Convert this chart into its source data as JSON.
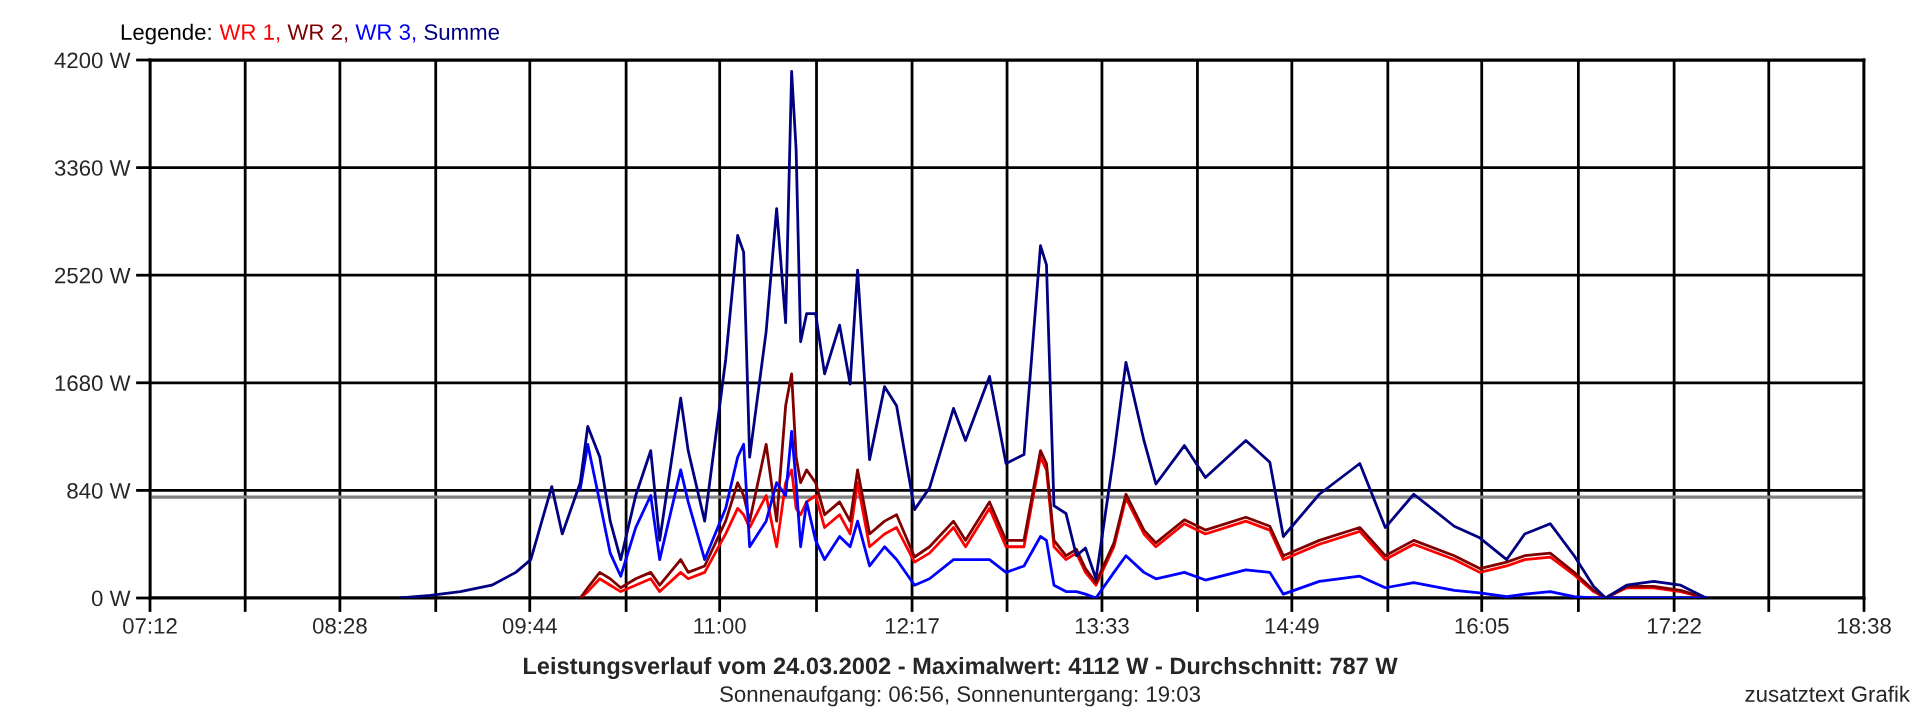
{
  "chart_data": {
    "type": "line",
    "title": "Leistungsverlauf vom 24.03.2002 - Maximalwert: 4112 W - Durchschnitt: 787 W",
    "subtitle": "Sonnenaufgang: 06:56, Sonnenuntergang: 19:03",
    "legend_title": "Legende:",
    "annotations": [
      "zusatztext Grafik"
    ],
    "x": [
      8.87,
      9.07,
      9.27,
      9.48,
      9.64,
      9.74,
      9.88,
      9.95,
      10.07,
      10.12,
      10.2,
      10.27,
      10.34,
      10.44,
      10.54,
      10.6,
      10.74,
      10.79,
      10.9,
      11.04,
      11.12,
      11.16,
      11.2,
      11.31,
      11.38,
      11.44,
      11.48,
      11.51,
      11.54,
      11.58,
      11.64,
      11.7,
      11.8,
      11.87,
      11.92,
      12.0,
      12.1,
      12.18,
      12.3,
      12.4,
      12.56,
      12.64,
      12.8,
      12.91,
      13.03,
      13.14,
      13.18,
      13.23,
      13.31,
      13.38,
      13.44,
      13.51,
      13.63,
      13.71,
      13.83,
      13.91,
      14.1,
      14.24,
      14.51,
      14.67,
      14.76,
      15.0,
      15.27,
      15.44,
      15.63,
      15.9,
      16.07,
      16.25,
      16.37,
      16.54,
      16.7,
      16.83,
      16.91,
      17.05,
      17.23,
      17.41,
      17.58
    ],
    "series": [
      {
        "name": "WR 1,",
        "color": "#ff0000",
        "values": [
          null,
          null,
          null,
          null,
          null,
          null,
          null,
          null,
          0,
          50,
          150,
          100,
          50,
          100,
          150,
          50,
          200,
          150,
          200,
          500,
          700,
          650,
          550,
          800,
          400,
          900,
          1000,
          700,
          650,
          750,
          800,
          550,
          650,
          500,
          900,
          400,
          500,
          550,
          280,
          350,
          550,
          400,
          700,
          400,
          400,
          1100,
          1000,
          400,
          300,
          350,
          200,
          100,
          400,
          780,
          500,
          400,
          580,
          500,
          600,
          530,
          300,
          420,
          520,
          300,
          420,
          300,
          200,
          250,
          300,
          320,
          180,
          50,
          0,
          80,
          80,
          50,
          0
        ]
      },
      {
        "name": "WR 2,",
        "color": "#800000",
        "values": [
          null,
          null,
          null,
          null,
          null,
          null,
          null,
          null,
          0,
          80,
          200,
          150,
          80,
          150,
          200,
          100,
          300,
          200,
          250,
          600,
          900,
          800,
          600,
          1200,
          600,
          1500,
          1750,
          1100,
          900,
          1000,
          900,
          650,
          750,
          600,
          1000,
          500,
          600,
          650,
          320,
          400,
          600,
          450,
          750,
          450,
          450,
          1150,
          1050,
          450,
          330,
          380,
          230,
          120,
          430,
          810,
          530,
          430,
          610,
          530,
          630,
          560,
          330,
          450,
          550,
          330,
          450,
          330,
          230,
          280,
          330,
          350,
          200,
          60,
          0,
          90,
          90,
          60,
          0
        ]
      },
      {
        "name": "WR 3,",
        "color": "#0000ff",
        "values": [
          null,
          null,
          null,
          null,
          null,
          null,
          null,
          null,
          850,
          1200,
          750,
          350,
          170,
          550,
          800,
          300,
          1000,
          750,
          300,
          700,
          1100,
          1200,
          400,
          600,
          900,
          800,
          1300,
          900,
          400,
          750,
          450,
          300,
          480,
          400,
          600,
          250,
          400,
          300,
          100,
          150,
          300,
          300,
          300,
          200,
          250,
          480,
          450,
          100,
          50,
          50,
          30,
          0,
          200,
          330,
          200,
          150,
          200,
          140,
          220,
          200,
          30,
          130,
          170,
          80,
          120,
          60,
          40,
          10,
          30,
          50,
          10,
          0,
          0,
          0,
          0,
          0,
          0
        ]
      },
      {
        "name": "Summe",
        "color": "#000080",
        "values": [
          0,
          20,
          50,
          100,
          200,
          300,
          870,
          500,
          900,
          1340,
          1100,
          600,
          300,
          800,
          1150,
          450,
          1560,
          1150,
          600,
          1860,
          2830,
          2700,
          1100,
          2080,
          3040,
          2150,
          4112,
          3500,
          2000,
          2220,
          2220,
          1750,
          2130,
          1670,
          2560,
          1080,
          1650,
          1500,
          690,
          860,
          1480,
          1230,
          1730,
          1050,
          1120,
          2750,
          2600,
          720,
          660,
          330,
          390,
          150,
          1120,
          1840,
          1230,
          890,
          1190,
          940,
          1230,
          1060,
          480,
          810,
          1050,
          550,
          810,
          560,
          470,
          300,
          500,
          580,
          330,
          90,
          0,
          100,
          130,
          100,
          0
        ]
      }
    ],
    "ref_lines": [
      {
        "axis": "y",
        "value": 787,
        "color": "#808080"
      }
    ],
    "xlim": [
      7.2,
      18.6333
    ],
    "xticks": [
      {
        "value": 7.2,
        "label": "07:12"
      },
      {
        "value": 7.835,
        "label": null
      },
      {
        "value": 8.4667,
        "label": "08:28"
      },
      {
        "value": 9.106,
        "label": null
      },
      {
        "value": 9.7333,
        "label": "09:44"
      },
      {
        "value": 10.376,
        "label": null
      },
      {
        "value": 11,
        "label": "11:00"
      },
      {
        "value": 11.646,
        "label": null
      },
      {
        "value": 12.2833,
        "label": "12:17"
      },
      {
        "value": 12.917,
        "label": null
      },
      {
        "value": 13.55,
        "label": "13:33"
      },
      {
        "value": 14.187,
        "label": null
      },
      {
        "value": 14.8167,
        "label": "14:49"
      },
      {
        "value": 15.457,
        "label": null
      },
      {
        "value": 16.0833,
        "label": "16:05"
      },
      {
        "value": 16.728,
        "label": null
      },
      {
        "value": 17.3667,
        "label": "17:22"
      },
      {
        "value": 17.998,
        "label": null
      },
      {
        "value": 18.6333,
        "label": "18:38"
      }
    ],
    "ylim": [
      0,
      4200
    ],
    "yticks": [
      {
        "value": 0,
        "label": "0 W"
      },
      {
        "value": 840,
        "label": "840 W"
      },
      {
        "value": 1680,
        "label": "1680 W"
      },
      {
        "value": 2520,
        "label": "2520 W"
      },
      {
        "value": 3360,
        "label": "3360 W"
      },
      {
        "value": 4200,
        "label": "4200 W"
      }
    ],
    "grid": true,
    "legend": "top left",
    "line_style": "solid"
  }
}
